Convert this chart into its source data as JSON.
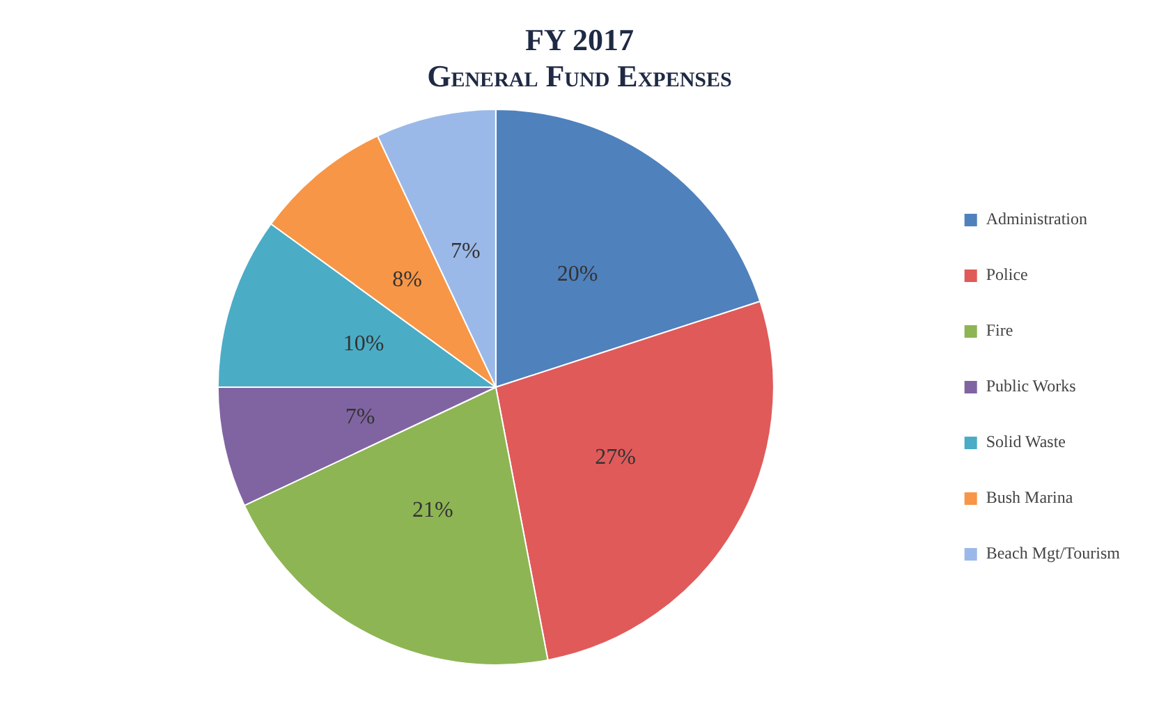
{
  "chart_data": {
    "type": "pie",
    "title": "FY 2017",
    "subtitle": "General Fund Expenses",
    "categories": [
      "Administration",
      "Police",
      "Fire",
      "Public Works",
      "Solid Waste",
      "Bush Marina",
      "Beach Mgt/Tourism"
    ],
    "values": [
      20,
      27,
      21,
      7,
      10,
      8,
      7
    ],
    "colors": [
      "#4f81bd",
      "#e05a5a",
      "#8db554",
      "#8064a2",
      "#4bacc6",
      "#f79646",
      "#9bb9e8"
    ],
    "value_labels": [
      "20%",
      "27%",
      "21%",
      "7%",
      "10%",
      "8%",
      "7%"
    ],
    "legend": "right"
  }
}
